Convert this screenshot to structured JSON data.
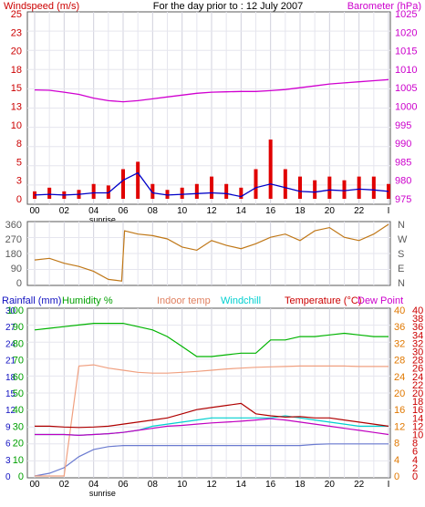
{
  "header": {
    "left": "Windspeed (m/s)",
    "center": "For the day prior to : 12 July 2007",
    "right": "Barometer (hPa)"
  },
  "colors": {
    "frame": "#5a5a5a",
    "grid_minor": "#e6e6ee",
    "grid_major": "#d0d0dc",
    "gust": "#e00000",
    "wind": "#0000c8",
    "barometer": "#d000d0",
    "direction": "#c07818",
    "rainfall": "#6b7bd0",
    "humidity": "#00b400",
    "indoor": "#f0a080",
    "windchill": "#00d0d0",
    "temperature": "#b00000",
    "dewpoint": "#c000c0",
    "label_red": "#cc0000",
    "label_mag": "#cc00cc",
    "label_blue": "#1010c0",
    "label_green": "#00a000",
    "label_orange": "#e07800",
    "label_salmon": "#e08060"
  },
  "x_ticks": [
    "00",
    "02",
    "04",
    "06",
    "08",
    "10",
    "12",
    "14",
    "16",
    "18",
    "20",
    "22",
    "I"
  ],
  "sunrise_label": "sunrise",
  "chart_data": [
    {
      "type": "bar",
      "title": "For the day prior to : 12 July 2007",
      "ylabel": "Windspeed (m/s)",
      "y2label": "Barometer (hPa)",
      "ylim": [
        0,
        25
      ],
      "y2lim": [
        975,
        1025
      ],
      "yticks": [
        "25",
        "23",
        "20",
        "18",
        "15",
        "13",
        "10",
        "8",
        "5",
        "3",
        "0"
      ],
      "y2ticks": [
        "1025",
        "1020",
        "1015",
        "1010",
        "1005",
        "1000",
        "995",
        "990",
        "985",
        "980",
        "975"
      ],
      "x_hours": [
        0,
        1,
        2,
        3,
        4,
        5,
        6,
        7,
        8,
        9,
        10,
        11,
        12,
        13,
        14,
        15,
        16,
        17,
        18,
        19,
        20,
        21,
        22,
        23,
        24
      ],
      "series": [
        {
          "name": "Windspeed gust",
          "values": [
            1,
            1.5,
            1,
            1.2,
            2,
            1.8,
            4,
            5,
            2,
            1.2,
            1.5,
            2,
            3,
            2,
            1.5,
            4,
            8,
            4,
            3,
            2.5,
            3,
            2.5,
            3,
            3,
            2
          ]
        },
        {
          "name": "Windspeed average",
          "values": [
            0.5,
            0.6,
            0.5,
            0.6,
            0.8,
            0.8,
            2.5,
            3.5,
            0.8,
            0.5,
            0.6,
            0.7,
            0.8,
            0.7,
            0.3,
            1.5,
            2,
            1.5,
            1,
            0.9,
            1.2,
            1.1,
            1.3,
            1.2,
            1
          ]
        },
        {
          "name": "Barometer",
          "values": [
            1004.4,
            1004.3,
            1003.8,
            1003.2,
            1002.2,
            1001.5,
            1001.2,
            1001.5,
            1002,
            1002.5,
            1003,
            1003.5,
            1003.8,
            1003.9,
            1004,
            1004,
            1004.2,
            1004.5,
            1005,
            1005.5,
            1006,
            1006.3,
            1006.6,
            1006.9,
            1007.2
          ]
        }
      ]
    },
    {
      "type": "line",
      "ylabel": "Wind direction",
      "ylim": [
        0,
        360
      ],
      "yticks": [
        "360",
        "270",
        "180",
        "90",
        "0"
      ],
      "compass": [
        "N",
        "W",
        "S",
        "E",
        "N"
      ],
      "x_hours": [
        0,
        1,
        2,
        3,
        4,
        5,
        5.9,
        6.1,
        7,
        8,
        9,
        10,
        11,
        12,
        13,
        14,
        15,
        16,
        17,
        18,
        19,
        20,
        21,
        22,
        23,
        24
      ],
      "series": [
        {
          "name": "Wind direction",
          "values": [
            140,
            150,
            120,
            100,
            70,
            20,
            10,
            320,
            300,
            290,
            270,
            220,
            200,
            260,
            230,
            210,
            240,
            280,
            300,
            260,
            320,
            340,
            280,
            260,
            300,
            360
          ]
        }
      ]
    },
    {
      "type": "line",
      "ylabels": [
        "Rainfall (mm)",
        "Humidity %",
        "Indoor temp",
        "Windchill",
        "Temperature (°C)",
        "Dew Point"
      ],
      "rain_ticks": [
        "30",
        "27",
        "24",
        "21",
        "18",
        "15",
        "12",
        "9",
        "6",
        "3",
        "0"
      ],
      "hum_ticks": [
        "100",
        "90",
        "80",
        "70",
        "60",
        "50",
        "40",
        "30",
        "20",
        "10",
        "0"
      ],
      "temp_ticks": [
        "40",
        "36",
        "32",
        "28",
        "24",
        "20",
        "16",
        "12",
        "8",
        "4",
        "0"
      ],
      "temp2_ticks": [
        "40",
        "38",
        "36",
        "34",
        "32",
        "30",
        "28",
        "26",
        "24",
        "22",
        "20",
        "18",
        "16",
        "14",
        "12",
        "10",
        "8",
        "6",
        "4",
        "2",
        "0"
      ],
      "ylim_rain": [
        0,
        30
      ],
      "ylim_hum": [
        0,
        100
      ],
      "ylim_temp": [
        0,
        40
      ],
      "x_hours": [
        0,
        1,
        2,
        3,
        4,
        5,
        6,
        7,
        8,
        9,
        10,
        11,
        12,
        13,
        14,
        15,
        16,
        17,
        18,
        19,
        20,
        21,
        22,
        23,
        24
      ],
      "series": [
        {
          "name": "Rainfall (mm)",
          "axis": "rain",
          "values": [
            0,
            0.5,
            1.5,
            3.5,
            4.8,
            5.3,
            5.5,
            5.5,
            5.5,
            5.5,
            5.5,
            5.5,
            5.5,
            5.5,
            5.5,
            5.5,
            5.5,
            5.5,
            5.5,
            5.7,
            5.8,
            5.8,
            5.8,
            5.8,
            5.8
          ]
        },
        {
          "name": "Humidity %",
          "axis": "hum",
          "values": [
            88,
            89,
            90,
            91,
            92,
            92,
            92,
            90,
            88,
            84,
            78,
            72,
            72,
            73,
            74,
            74,
            82,
            82,
            84,
            84,
            85,
            86,
            85,
            84,
            84
          ]
        },
        {
          "name": "Indoor temp",
          "axis": "temp",
          "values": [
            0,
            0,
            0,
            26.5,
            26.8,
            26,
            25.5,
            25,
            24.8,
            24.8,
            25,
            25.2,
            25.5,
            25.8,
            26,
            26.2,
            26.3,
            26.4,
            26.5,
            26.5,
            26.5,
            26.5,
            26.4,
            26.4,
            26.4
          ]
        },
        {
          "name": "Windchill",
          "axis": "temp",
          "values": [
            10,
            10,
            10,
            9.8,
            10,
            10.2,
            10.5,
            11,
            12,
            12.5,
            13,
            13.5,
            14,
            14,
            14,
            14,
            14,
            14.5,
            14,
            13.5,
            13,
            12.5,
            12,
            12,
            12
          ]
        },
        {
          "name": "Temperature (°C)",
          "axis": "temp",
          "values": [
            12,
            12,
            11.8,
            11.7,
            11.8,
            12,
            12.5,
            13,
            13.5,
            14,
            15,
            16,
            16.5,
            17,
            17.5,
            15,
            14.5,
            14.2,
            14.3,
            14,
            14,
            13.5,
            13,
            12.5,
            12
          ]
        },
        {
          "name": "Dew Point",
          "axis": "temp",
          "values": [
            10,
            10,
            10,
            9.8,
            10,
            10.2,
            10.5,
            11,
            11.5,
            12,
            12.2,
            12.5,
            12.8,
            13,
            13.2,
            13.5,
            13.8,
            13.5,
            13,
            12.5,
            12,
            11.5,
            11,
            10.5,
            10
          ]
        }
      ]
    }
  ]
}
